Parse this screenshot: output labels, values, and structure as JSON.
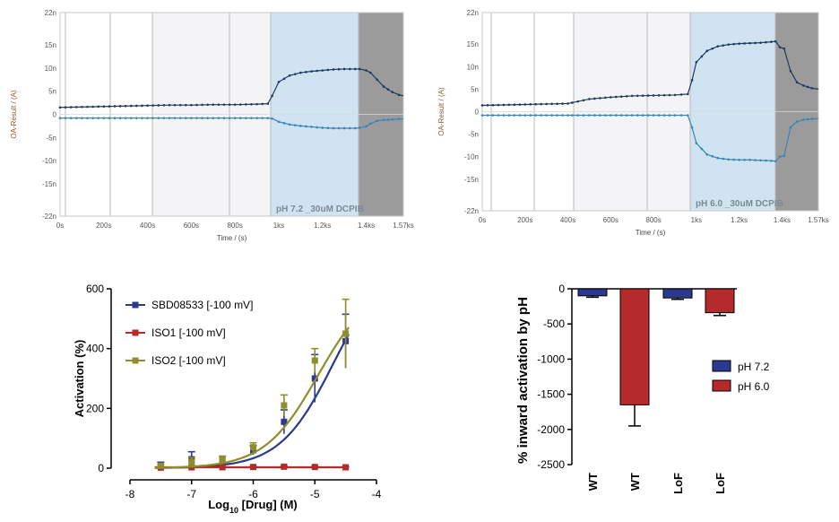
{
  "chart_data": [
    {
      "type": "line",
      "ylabel": "OA-Result / (A)",
      "xlabel": "Time / (s)",
      "annotation": "pH 7.2 _30uM DCPIB",
      "yticks": [
        "22n",
        "15n",
        "10n",
        "5n",
        "0",
        "-5n",
        "-10n",
        "-15n",
        "-22n"
      ],
      "xticks": [
        "0s",
        "200s",
        "400s",
        "600s",
        "800s",
        "1ks",
        "1.2ks",
        "1.4ks",
        "1.57ks"
      ],
      "ylim": [
        -22,
        22
      ],
      "xlim": [
        0,
        1570
      ],
      "colors": {
        "upper": "#1f3a5f",
        "lower": "#3a86b8",
        "acid": "#cfe3f1",
        "drug": "#9b9b9b",
        "light": "#f4f4f6"
      },
      "series": [
        {
          "x": [
            0,
            100,
            200,
            300,
            400,
            500,
            600,
            700,
            800,
            900,
            950,
            970,
            1000,
            1050,
            1100,
            1150,
            1200,
            1250,
            1300,
            1350,
            1370,
            1400,
            1420,
            1450,
            1480,
            1520,
            1550,
            1570
          ],
          "values": [
            1.5,
            1.6,
            1.7,
            1.8,
            1.9,
            2.0,
            2.0,
            2.1,
            2.1,
            2.2,
            2.3,
            4.0,
            7.0,
            8.4,
            9.0,
            9.3,
            9.5,
            9.7,
            9.8,
            9.8,
            9.8,
            9.5,
            9.0,
            7.5,
            6.0,
            4.8,
            4.2,
            4.0
          ]
        },
        {
          "x": [
            0,
            100,
            200,
            300,
            400,
            500,
            600,
            700,
            800,
            900,
            950,
            970,
            1000,
            1050,
            1100,
            1150,
            1200,
            1250,
            1300,
            1350,
            1370,
            1400,
            1420,
            1450,
            1480,
            1520,
            1550,
            1570
          ],
          "values": [
            -0.8,
            -0.8,
            -0.8,
            -0.8,
            -0.8,
            -0.8,
            -0.8,
            -0.8,
            -0.8,
            -0.8,
            -0.8,
            -0.9,
            -1.6,
            -2.2,
            -2.5,
            -2.7,
            -2.9,
            -3.0,
            -3.0,
            -3.0,
            -2.9,
            -2.6,
            -2.0,
            -1.4,
            -1.2,
            -1.1,
            -1.0,
            -1.0
          ]
        }
      ]
    },
    {
      "type": "line",
      "ylabel": "OA-Result / (A)",
      "xlabel": "Time / (s)",
      "annotation": "pH 6.0 _30uM DCPIB",
      "yticks": [
        "22n",
        "15n",
        "10n",
        "5n",
        "0",
        "-5n",
        "-10n",
        "-15n",
        "-22n"
      ],
      "xticks": [
        "0s",
        "200s",
        "400s",
        "600s",
        "800s",
        "1ks",
        "1.2ks",
        "1.4ks",
        "1.57ks"
      ],
      "ylim": [
        -22,
        22
      ],
      "xlim": [
        0,
        1570
      ],
      "colors": {
        "upper": "#1f3a5f",
        "lower": "#3a86b8",
        "acid": "#cfe3f1",
        "drug": "#9b9b9b",
        "light": "#f4f4f6"
      },
      "series": [
        {
          "x": [
            0,
            100,
            200,
            300,
            400,
            420,
            500,
            550,
            600,
            700,
            800,
            900,
            960,
            980,
            1000,
            1050,
            1100,
            1150,
            1200,
            1250,
            1300,
            1350,
            1370,
            1390,
            1410,
            1440,
            1470,
            1500,
            1540,
            1570
          ],
          "values": [
            1.4,
            1.5,
            1.6,
            1.7,
            1.8,
            2.0,
            2.8,
            3.0,
            3.2,
            3.5,
            3.6,
            3.7,
            3.9,
            7.0,
            11.0,
            13.5,
            14.5,
            14.9,
            15.1,
            15.2,
            15.3,
            15.5,
            15.6,
            14.3,
            14.0,
            9.0,
            6.5,
            5.8,
            5.2,
            5.0
          ]
        },
        {
          "x": [
            0,
            100,
            200,
            300,
            400,
            420,
            500,
            550,
            600,
            700,
            800,
            900,
            960,
            980,
            1000,
            1050,
            1100,
            1150,
            1200,
            1250,
            1300,
            1350,
            1370,
            1390,
            1410,
            1440,
            1470,
            1500,
            1540,
            1570
          ],
          "values": [
            -0.8,
            -0.8,
            -0.8,
            -0.8,
            -0.8,
            -0.8,
            -0.8,
            -0.8,
            -0.8,
            -0.8,
            -0.8,
            -0.8,
            -0.8,
            -3.5,
            -7.0,
            -9.5,
            -10.3,
            -10.6,
            -10.7,
            -10.7,
            -10.8,
            -10.9,
            -11.0,
            -10.0,
            -9.8,
            -3.5,
            -2.2,
            -1.8,
            -1.6,
            -1.5
          ]
        }
      ]
    },
    {
      "type": "line",
      "ylabel": "Activation (%)",
      "xlabel_prefix": "Log",
      "xlabel_sub": "10",
      "xlabel_suffix": " [Drug] (M)",
      "xticks": [
        "-8",
        "-7",
        "-6",
        "-5",
        "-4"
      ],
      "yticks": [
        "0",
        "200",
        "400",
        "600"
      ],
      "xlim": [
        -8,
        -4
      ],
      "ylim": [
        0,
        600
      ],
      "legend_position": "top-left",
      "series": [
        {
          "name": "SBD08533 [-100 mV]",
          "color": "#2b3a8f",
          "x": [
            -7.5,
            -7,
            -6.5,
            -6,
            -5.5,
            -5,
            -4.5
          ],
          "values": [
            5,
            30,
            25,
            60,
            155,
            300,
            425
          ],
          "errors": [
            15,
            25,
            15,
            15,
            40,
            80,
            90
          ],
          "fit": {
            "bottom": 0,
            "top": 700,
            "ec50": -4.7,
            "hill": 1
          }
        },
        {
          "name": "ISO1 [-100 mV]",
          "color": "#b52a2a",
          "x": [
            -7.5,
            -7,
            -6.5,
            -6,
            -5.5,
            -5,
            -4.5
          ],
          "values": [
            2,
            3,
            3,
            4,
            5,
            4,
            3
          ],
          "errors": [
            2,
            2,
            2,
            2,
            2,
            2,
            2
          ],
          "fit": {
            "bottom": 3,
            "top": 3,
            "ec50": -6,
            "hill": 1
          }
        },
        {
          "name": "ISO2 [-100 mV]",
          "color": "#8e8e2a",
          "x": [
            -7.5,
            -7,
            -6.5,
            -6,
            -5.5,
            -5,
            -4.5
          ],
          "values": [
            8,
            20,
            30,
            70,
            210,
            360,
            450
          ],
          "errors": [
            5,
            15,
            10,
            15,
            35,
            40,
            115
          ],
          "fit": {
            "bottom": 0,
            "top": 620,
            "ec50": -4.95,
            "hill": 1
          }
        }
      ]
    },
    {
      "type": "bar",
      "ylabel": "% inward activation by pH",
      "categories": [
        "WT",
        "WT",
        "LoF",
        "LoF"
      ],
      "values": [
        -100,
        -1650,
        -130,
        -340
      ],
      "errors": [
        20,
        300,
        20,
        40
      ],
      "bar_colors": [
        "#2b3a8f",
        "#b52a2a",
        "#2b3a8f",
        "#b52a2a"
      ],
      "yticks": [
        "0",
        "-500",
        "-1000",
        "-1500",
        "-2000",
        "-2500"
      ],
      "ylim": [
        -2500,
        0
      ],
      "legend_position": "right",
      "legend": [
        {
          "name": "pH 7.2",
          "color": "#2b3a8f"
        },
        {
          "name": "pH 6.0",
          "color": "#b52a2a"
        }
      ]
    }
  ]
}
